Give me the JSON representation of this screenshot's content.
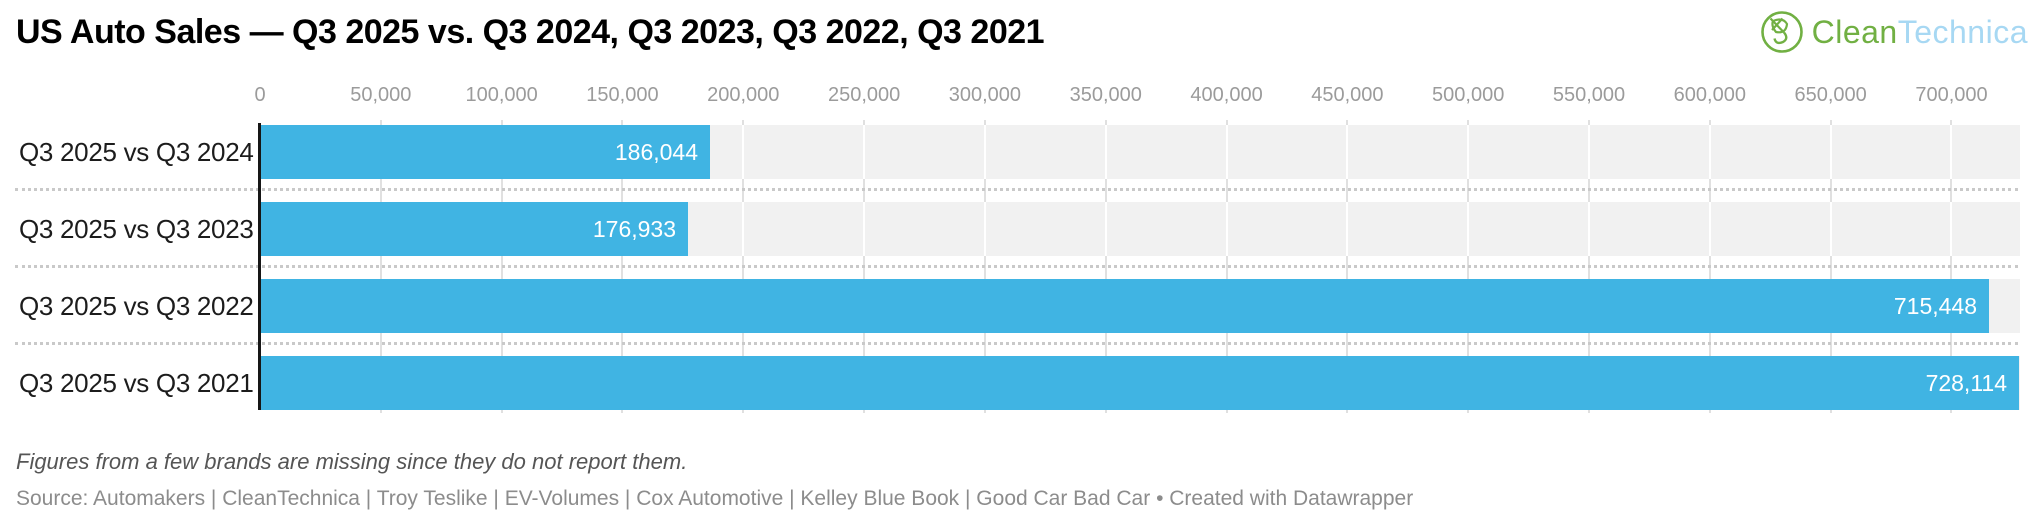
{
  "title": "US Auto Sales — Q3 2025 vs. Q3 2024, Q3 2023, Q3 2022, Q3 2021",
  "logo": {
    "first": "Clean",
    "second": "Technica",
    "green": "#71b043",
    "blue": "#a7d8f3"
  },
  "chart_data": {
    "type": "bar",
    "orientation": "horizontal",
    "title": "US Auto Sales — Q3 2025 vs. Q3 2024, Q3 2023, Q3 2022, Q3 2021",
    "categories": [
      "Q3 2025 vs Q3 2024",
      "Q3 2025 vs Q3 2023",
      "Q3 2025 vs Q3 2022",
      "Q3 2025 vs Q3 2021"
    ],
    "values": [
      186044,
      176933,
      715448,
      728114
    ],
    "value_labels": [
      "186,044",
      "176,933",
      "715,448",
      "728,114"
    ],
    "x_ticks": [
      "0",
      "50,000",
      "100,000",
      "150,000",
      "200,000",
      "250,000",
      "300,000",
      "350,000",
      "400,000",
      "450,000",
      "500,000",
      "550,000",
      "600,000",
      "650,000",
      "700,000"
    ],
    "x_tick_values": [
      0,
      50000,
      100000,
      150000,
      200000,
      250000,
      300000,
      350000,
      400000,
      450000,
      500000,
      550000,
      600000,
      650000,
      700000
    ],
    "xlim": [
      0,
      728114
    ],
    "xlabel": "",
    "ylabel": "",
    "grid": true,
    "legend": "none",
    "bar_color": "#40b4e3",
    "band_color": "#f1f1f1",
    "value_label_position": "inside-end"
  },
  "footnote": "Figures from a few brands are missing since they do not report them.",
  "source": {
    "text": "Source: Automakers | CleanTechnica | Troy Teslike | EV-Volumes | Cox Automotive | Kelley Blue Book | Good Car Bad Car",
    "separator": "•",
    "attribution": "Created with Datawrapper"
  }
}
